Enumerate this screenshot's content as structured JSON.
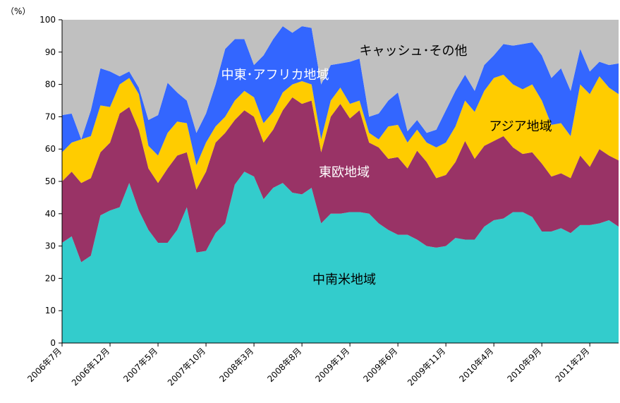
{
  "chart_data": {
    "type": "stacked_area",
    "y_label": "（%）",
    "categories": [
      "2006年7月",
      null,
      null,
      null,
      null,
      "2006年12月",
      null,
      null,
      null,
      null,
      "2007年5月",
      null,
      null,
      null,
      null,
      "2007年10月",
      null,
      null,
      null,
      null,
      "2008年3月",
      null,
      null,
      null,
      null,
      "2008年8月",
      null,
      null,
      null,
      null,
      "2009年1月",
      null,
      null,
      null,
      null,
      "2009年6月",
      null,
      null,
      null,
      null,
      "2009年11月",
      null,
      null,
      null,
      null,
      "2010年4月",
      null,
      null,
      null,
      null,
      "2010年9月",
      null,
      null,
      null,
      null,
      "2011年2月",
      null,
      null,
      null
    ],
    "series": [
      {
        "name": "中南米地域",
        "color": "#33CCCC",
        "values": [
          31,
          33,
          25,
          27,
          39.5,
          41,
          42,
          49.5,
          41,
          35,
          31,
          31,
          35,
          42,
          28,
          28.5,
          34,
          37,
          49,
          53,
          51.5,
          44.5,
          48,
          49.5,
          46.5,
          46,
          48,
          37,
          40,
          40,
          40.5,
          40.5,
          40,
          37,
          35,
          33.5,
          33.5,
          32,
          30,
          29.5,
          30,
          32.5,
          32,
          32,
          36,
          38,
          38.5,
          40.5,
          40.5,
          39,
          34.5,
          34.5,
          35.5,
          34,
          36.5,
          36.5,
          37,
          38,
          36
        ]
      },
      {
        "name": "東欧地域",
        "color": "#993366",
        "values": [
          19,
          20,
          24.5,
          24,
          19.5,
          21,
          29,
          23.5,
          25,
          19,
          18.5,
          23,
          23,
          17,
          19.5,
          24.5,
          28,
          28,
          20,
          19,
          18.5,
          17.5,
          18,
          22.5,
          29.5,
          28,
          27,
          22,
          30,
          34,
          29,
          31.5,
          22,
          23.5,
          22,
          24,
          20.5,
          27.5,
          26,
          21.5,
          22,
          23.5,
          30.5,
          25,
          25,
          24.5,
          25.5,
          20,
          18,
          20,
          21,
          17,
          17,
          17,
          21.5,
          18,
          23,
          20,
          20.5
        ]
      },
      {
        "name": "アジア地域",
        "color": "#FFCC00",
        "values": [
          9,
          9,
          13.5,
          13,
          14.5,
          11,
          9,
          9,
          11,
          7,
          8.5,
          11,
          10.5,
          9,
          7.5,
          9,
          5,
          5,
          6,
          6,
          6,
          6,
          5.5,
          5.5,
          4,
          7,
          5,
          4,
          5,
          5,
          4.5,
          3,
          3,
          2.5,
          10,
          10,
          8,
          6.5,
          6,
          9.5,
          10,
          11,
          12.5,
          14.5,
          17,
          19.5,
          19,
          19.5,
          20,
          21,
          19.5,
          16,
          15.5,
          13,
          22,
          22.5,
          22.5,
          21,
          20.5
        ]
      },
      {
        "name": "中東･アフリカ地域",
        "color": "#3366FF",
        "values": [
          11.5,
          9,
          0,
          8,
          11.5,
          11,
          2.5,
          2,
          2,
          8,
          12.5,
          15.5,
          9,
          7,
          10,
          9,
          13,
          21,
          19,
          16,
          10,
          21,
          22.5,
          20.5,
          16,
          17,
          17.5,
          17,
          11,
          7.5,
          13,
          13,
          5,
          8,
          8,
          10,
          3.5,
          3,
          3,
          5.5,
          10,
          11,
          8,
          6.5,
          8,
          7,
          9.5,
          12,
          14,
          13,
          14,
          14.5,
          17,
          14,
          11,
          7,
          4.5,
          7,
          9.5
        ]
      },
      {
        "name": "キャッシュ･その他",
        "color": "#C0C0C0",
        "values": [
          29.5,
          29,
          37,
          28,
          15,
          16,
          17.5,
          16,
          21,
          31,
          29.5,
          19.5,
          22.5,
          25,
          35,
          29,
          20,
          9,
          6,
          6,
          14,
          11,
          6,
          2,
          4,
          2,
          2.5,
          20,
          14,
          13.5,
          13,
          12,
          30,
          29,
          25,
          22.5,
          34.5,
          31,
          35,
          34,
          28,
          22,
          17,
          22,
          14,
          11,
          7.5,
          8,
          7.5,
          7,
          11,
          18,
          15,
          22,
          9,
          16,
          13,
          14,
          13.5
        ]
      }
    ],
    "ylim": [
      0,
      100
    ],
    "yticks": [
      0,
      10,
      20,
      30,
      40,
      50,
      60,
      70,
      80,
      90,
      100
    ]
  }
}
